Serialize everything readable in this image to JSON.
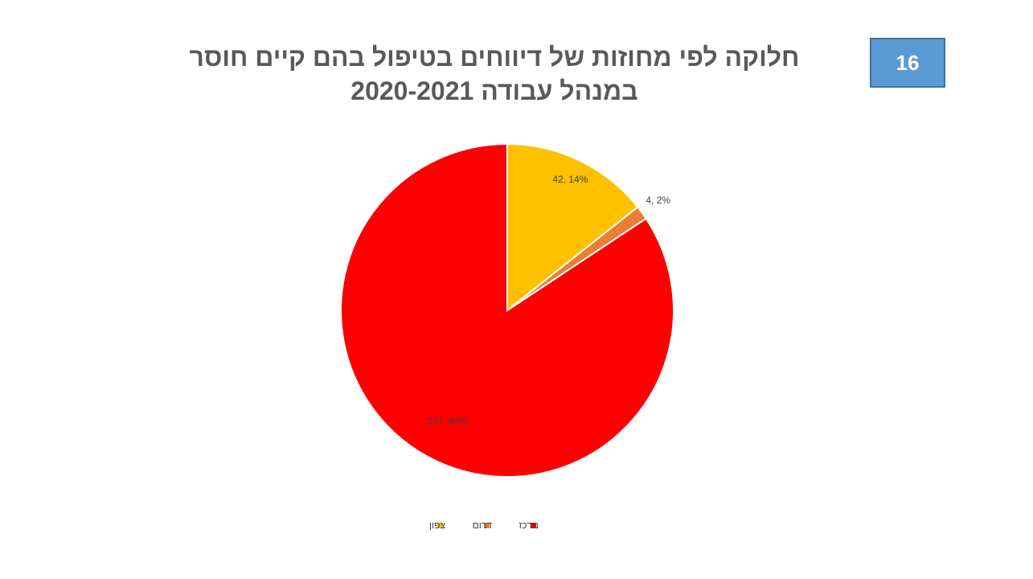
{
  "slide_number": 16,
  "chart_data": {
    "type": "pie",
    "title": "חלוקה לפי מחוזות של דיווחים בטיפול בהם קיים חוסר במנהל עבודה 2020-2021",
    "categories": [
      "צפון",
      "דרום",
      "מרכז"
    ],
    "values": [
      42,
      4,
      247
    ],
    "value_labels": [
      "42, 14%",
      "4, 2%",
      "247, 84%"
    ],
    "colors": [
      "#ffc000",
      "#ed7d31",
      "#ff0000"
    ],
    "legend": "bottom"
  }
}
